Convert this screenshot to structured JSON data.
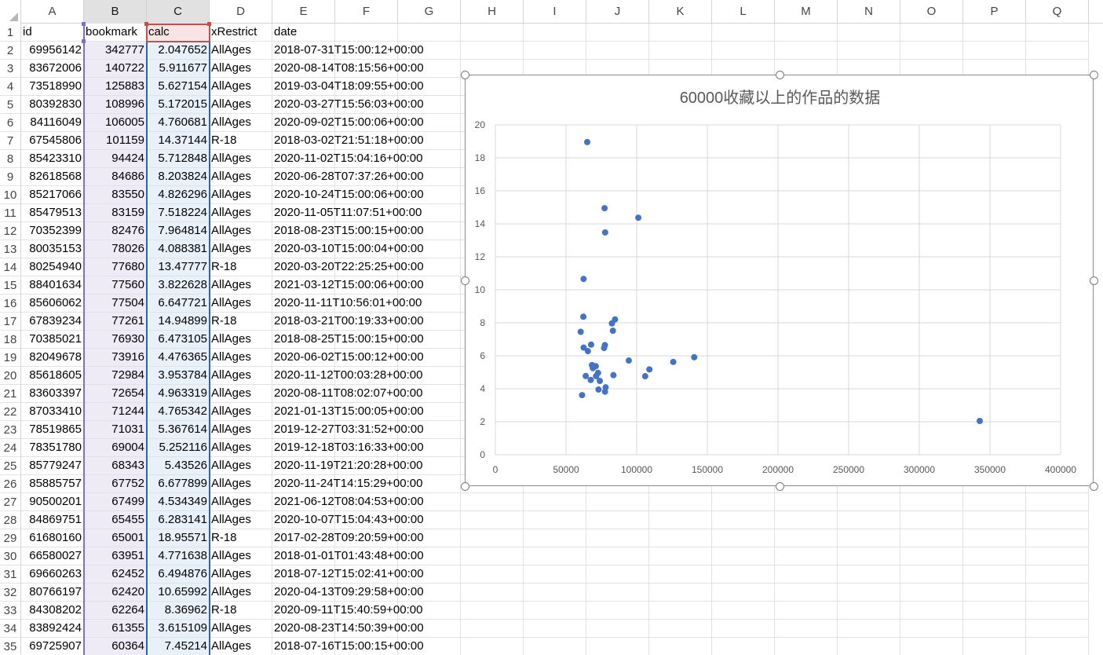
{
  "columns": [
    "A",
    "B",
    "C",
    "D",
    "E",
    "F",
    "G",
    "H",
    "I",
    "J",
    "K",
    "L",
    "M",
    "N",
    "O",
    "P",
    "Q"
  ],
  "header_row": {
    "row": "1",
    "values": [
      "id",
      "bookmark",
      "calc",
      "xRestrict",
      "date"
    ]
  },
  "rows": [
    {
      "row": "2",
      "id": "69956142",
      "bookmark": "342777",
      "calc": "2.047652",
      "xrestrict": "AllAges",
      "date": "2018-07-31T15:00:12+00:00"
    },
    {
      "row": "3",
      "id": "83672006",
      "bookmark": "140722",
      "calc": "5.911677",
      "xrestrict": "AllAges",
      "date": "2020-08-14T08:15:56+00:00"
    },
    {
      "row": "4",
      "id": "73518990",
      "bookmark": "125883",
      "calc": "5.627154",
      "xrestrict": "AllAges",
      "date": "2019-03-04T18:09:55+00:00"
    },
    {
      "row": "5",
      "id": "80392830",
      "bookmark": "108996",
      "calc": "5.172015",
      "xrestrict": "AllAges",
      "date": "2020-03-27T15:56:03+00:00"
    },
    {
      "row": "6",
      "id": "84116049",
      "bookmark": "106005",
      "calc": "4.760681",
      "xrestrict": "AllAges",
      "date": "2020-09-02T15:00:06+00:00"
    },
    {
      "row": "7",
      "id": "67545806",
      "bookmark": "101159",
      "calc": "14.37144",
      "xrestrict": "R-18",
      "date": "2018-03-02T21:51:18+00:00"
    },
    {
      "row": "8",
      "id": "85423310",
      "bookmark": "94424",
      "calc": "5.712848",
      "xrestrict": "AllAges",
      "date": "2020-11-02T15:04:16+00:00"
    },
    {
      "row": "9",
      "id": "82618568",
      "bookmark": "84686",
      "calc": "8.203824",
      "xrestrict": "AllAges",
      "date": "2020-06-28T07:37:26+00:00"
    },
    {
      "row": "10",
      "id": "85217066",
      "bookmark": "83550",
      "calc": "4.826296",
      "xrestrict": "AllAges",
      "date": "2020-10-24T15:00:06+00:00"
    },
    {
      "row": "11",
      "id": "85479513",
      "bookmark": "83159",
      "calc": "7.518224",
      "xrestrict": "AllAges",
      "date": "2020-11-05T11:07:51+00:00"
    },
    {
      "row": "12",
      "id": "70352399",
      "bookmark": "82476",
      "calc": "7.964814",
      "xrestrict": "AllAges",
      "date": "2018-08-23T15:00:15+00:00"
    },
    {
      "row": "13",
      "id": "80035153",
      "bookmark": "78026",
      "calc": "4.088381",
      "xrestrict": "AllAges",
      "date": "2020-03-10T15:00:04+00:00"
    },
    {
      "row": "14",
      "id": "80254940",
      "bookmark": "77680",
      "calc": "13.47777",
      "xrestrict": "R-18",
      "date": "2020-03-20T22:25:25+00:00"
    },
    {
      "row": "15",
      "id": "88401634",
      "bookmark": "77560",
      "calc": "3.822628",
      "xrestrict": "AllAges",
      "date": "2021-03-12T15:00:06+00:00"
    },
    {
      "row": "16",
      "id": "85606062",
      "bookmark": "77504",
      "calc": "6.647721",
      "xrestrict": "AllAges",
      "date": "2020-11-11T10:56:01+00:00"
    },
    {
      "row": "17",
      "id": "67839234",
      "bookmark": "77261",
      "calc": "14.94899",
      "xrestrict": "R-18",
      "date": "2018-03-21T00:19:33+00:00"
    },
    {
      "row": "18",
      "id": "70385021",
      "bookmark": "76930",
      "calc": "6.473105",
      "xrestrict": "AllAges",
      "date": "2018-08-25T15:00:15+00:00"
    },
    {
      "row": "19",
      "id": "82049678",
      "bookmark": "73916",
      "calc": "4.476365",
      "xrestrict": "AllAges",
      "date": "2020-06-02T15:00:12+00:00"
    },
    {
      "row": "20",
      "id": "85618605",
      "bookmark": "72984",
      "calc": "3.953784",
      "xrestrict": "AllAges",
      "date": "2020-11-12T00:03:28+00:00"
    },
    {
      "row": "21",
      "id": "83603397",
      "bookmark": "72654",
      "calc": "4.963319",
      "xrestrict": "AllAges",
      "date": "2020-08-11T08:02:07+00:00"
    },
    {
      "row": "22",
      "id": "87033410",
      "bookmark": "71244",
      "calc": "4.765342",
      "xrestrict": "AllAges",
      "date": "2021-01-13T15:00:05+00:00"
    },
    {
      "row": "23",
      "id": "78519865",
      "bookmark": "71031",
      "calc": "5.367614",
      "xrestrict": "AllAges",
      "date": "2019-12-27T03:31:52+00:00"
    },
    {
      "row": "24",
      "id": "78351780",
      "bookmark": "69004",
      "calc": "5.252116",
      "xrestrict": "AllAges",
      "date": "2019-12-18T03:16:33+00:00"
    },
    {
      "row": "25",
      "id": "85779247",
      "bookmark": "68343",
      "calc": "5.43526",
      "xrestrict": "AllAges",
      "date": "2020-11-19T21:20:28+00:00"
    },
    {
      "row": "26",
      "id": "85885757",
      "bookmark": "67752",
      "calc": "6.677899",
      "xrestrict": "AllAges",
      "date": "2020-11-24T14:15:29+00:00"
    },
    {
      "row": "27",
      "id": "90500201",
      "bookmark": "67499",
      "calc": "4.534349",
      "xrestrict": "AllAges",
      "date": "2021-06-12T08:04:53+00:00"
    },
    {
      "row": "28",
      "id": "84869751",
      "bookmark": "65455",
      "calc": "6.283141",
      "xrestrict": "AllAges",
      "date": "2020-10-07T15:04:43+00:00"
    },
    {
      "row": "29",
      "id": "61680160",
      "bookmark": "65001",
      "calc": "18.95571",
      "xrestrict": "R-18",
      "date": "2017-02-28T09:20:59+00:00"
    },
    {
      "row": "30",
      "id": "66580027",
      "bookmark": "63951",
      "calc": "4.771638",
      "xrestrict": "AllAges",
      "date": "2018-01-01T01:43:48+00:00"
    },
    {
      "row": "31",
      "id": "69660263",
      "bookmark": "62452",
      "calc": "6.494876",
      "xrestrict": "AllAges",
      "date": "2018-07-12T15:02:41+00:00"
    },
    {
      "row": "32",
      "id": "80766197",
      "bookmark": "62420",
      "calc": "10.65992",
      "xrestrict": "AllAges",
      "date": "2020-04-13T09:29:58+00:00"
    },
    {
      "row": "33",
      "id": "84308202",
      "bookmark": "62264",
      "calc": "8.36962",
      "xrestrict": "R-18",
      "date": "2020-09-11T15:40:59+00:00"
    },
    {
      "row": "34",
      "id": "83892424",
      "bookmark": "61355",
      "calc": "3.615109",
      "xrestrict": "AllAges",
      "date": "2020-08-23T14:50:39+00:00"
    },
    {
      "row": "35",
      "id": "69725907",
      "bookmark": "60364",
      "calc": "7.45214",
      "xrestrict": "AllAges",
      "date": "2018-07-16T15:00:15+00:00"
    }
  ],
  "chart_data": {
    "type": "scatter",
    "title": "60000收藏以上的作品的数据",
    "xlabel": "",
    "ylabel": "",
    "xlim": [
      0,
      400000
    ],
    "ylim": [
      0,
      20
    ],
    "x_ticks": [
      "0",
      "50000",
      "100000",
      "150000",
      "200000",
      "250000",
      "300000",
      "350000",
      "400000"
    ],
    "y_ticks": [
      "0",
      "2",
      "4",
      "6",
      "8",
      "10",
      "12",
      "14",
      "16",
      "18",
      "20"
    ],
    "grid": true,
    "legend": "none",
    "marker_color": "#4472c4",
    "series": [
      {
        "x": [
          342777,
          140722,
          125883,
          108996,
          106005,
          101159,
          94424,
          84686,
          83550,
          83159,
          82476,
          78026,
          77680,
          77560,
          77504,
          77261,
          76930,
          73916,
          72984,
          72654,
          71244,
          71031,
          69004,
          68343,
          67752,
          67499,
          65455,
          65001,
          63951,
          62452,
          62420,
          62264,
          61355,
          60364
        ],
        "y": [
          2.047652,
          5.911677,
          5.627154,
          5.172015,
          4.760681,
          14.37144,
          5.712848,
          8.203824,
          4.826296,
          7.518224,
          7.964814,
          4.088381,
          13.47777,
          3.822628,
          6.647721,
          14.94899,
          6.473105,
          4.476365,
          3.953784,
          4.963319,
          4.765342,
          5.367614,
          5.252116,
          5.43526,
          6.677899,
          4.534349,
          6.283141,
          18.95571,
          4.771638,
          6.494876,
          10.65992,
          8.36962,
          3.615109,
          7.45214
        ]
      }
    ]
  }
}
